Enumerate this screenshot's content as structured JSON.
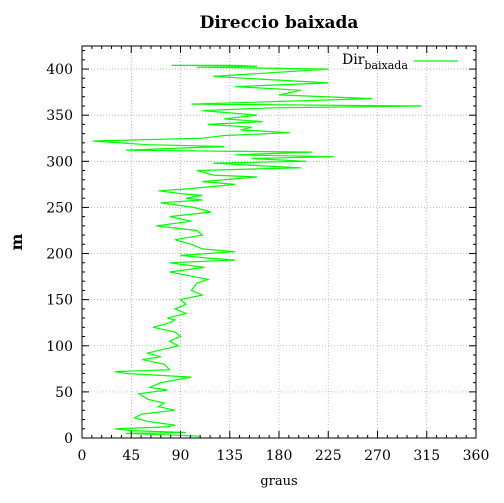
{
  "chart_data": {
    "type": "line",
    "title": "Direccio baixada",
    "xlabel": "graus",
    "ylabel": "m",
    "xlim": [
      0,
      360
    ],
    "ylim": [
      0,
      425
    ],
    "xticks": [
      0,
      45,
      90,
      135,
      180,
      225,
      270,
      315,
      360
    ],
    "yticks": [
      0,
      50,
      100,
      150,
      200,
      250,
      300,
      350,
      400
    ],
    "grid": true,
    "legend_position": "top-right",
    "series": [
      {
        "name": "Dir",
        "name_subscript": "baixada",
        "color": "#00ff00",
        "points": [
          [
            108,
            2
          ],
          [
            65,
            4
          ],
          [
            40,
            5
          ],
          [
            95,
            6
          ],
          [
            45,
            8
          ],
          [
            30,
            10
          ],
          [
            78,
            12
          ],
          [
            85,
            14
          ],
          [
            60,
            18
          ],
          [
            48,
            22
          ],
          [
            55,
            26
          ],
          [
            85,
            30
          ],
          [
            70,
            34
          ],
          [
            75,
            38
          ],
          [
            60,
            42
          ],
          [
            52,
            48
          ],
          [
            78,
            52
          ],
          [
            62,
            55
          ],
          [
            72,
            60
          ],
          [
            100,
            66
          ],
          [
            40,
            70
          ],
          [
            30,
            72
          ],
          [
            80,
            74
          ],
          [
            75,
            80
          ],
          [
            55,
            85
          ],
          [
            72,
            88
          ],
          [
            60,
            92
          ],
          [
            70,
            95
          ],
          [
            88,
            100
          ],
          [
            80,
            105
          ],
          [
            90,
            110
          ],
          [
            85,
            115
          ],
          [
            65,
            120
          ],
          [
            80,
            125
          ],
          [
            85,
            128
          ],
          [
            78,
            130
          ],
          [
            95,
            135
          ],
          [
            85,
            140
          ],
          [
            95,
            145
          ],
          [
            90,
            150
          ],
          [
            110,
            155
          ],
          [
            100,
            160
          ],
          [
            105,
            168
          ],
          [
            115,
            172
          ],
          [
            98,
            176
          ],
          [
            80,
            180
          ],
          [
            112,
            185
          ],
          [
            80,
            190
          ],
          [
            140,
            193
          ],
          [
            115,
            195
          ],
          [
            90,
            198
          ],
          [
            140,
            202
          ],
          [
            110,
            205
          ],
          [
            100,
            210
          ],
          [
            85,
            215
          ],
          [
            110,
            220
          ],
          [
            105,
            225
          ],
          [
            68,
            230
          ],
          [
            100,
            235
          ],
          [
            80,
            240
          ],
          [
            118,
            245
          ],
          [
            102,
            250
          ],
          [
            72,
            255
          ],
          [
            110,
            258
          ],
          [
            95,
            260
          ],
          [
            110,
            263
          ],
          [
            90,
            265
          ],
          [
            70,
            268
          ],
          [
            95,
            270
          ],
          [
            140,
            275
          ],
          [
            110,
            278
          ],
          [
            160,
            283
          ],
          [
            120,
            285
          ],
          [
            105,
            290
          ],
          [
            200,
            293
          ],
          [
            165,
            295
          ],
          [
            120,
            298
          ],
          [
            205,
            300
          ],
          [
            155,
            303
          ],
          [
            230,
            305
          ],
          [
            140,
            307
          ],
          [
            210,
            310
          ],
          [
            40,
            312
          ],
          [
            130,
            316
          ],
          [
            60,
            318
          ],
          [
            10,
            322
          ],
          [
            110,
            325
          ],
          [
            130,
            328
          ],
          [
            190,
            331
          ],
          [
            145,
            334
          ],
          [
            155,
            337
          ],
          [
            115,
            340
          ],
          [
            165,
            343
          ],
          [
            130,
            346
          ],
          [
            160,
            350
          ],
          [
            110,
            355
          ],
          [
            175,
            358
          ],
          [
            310,
            360
          ],
          [
            100,
            362
          ],
          [
            265,
            368
          ],
          [
            180,
            372
          ],
          [
            200,
            377
          ],
          [
            140,
            381
          ],
          [
            225,
            385
          ],
          [
            150,
            390
          ],
          [
            120,
            392
          ],
          [
            225,
            400
          ],
          [
            105,
            402
          ],
          [
            160,
            403
          ],
          [
            140,
            404
          ],
          [
            82,
            404
          ]
        ]
      }
    ]
  }
}
